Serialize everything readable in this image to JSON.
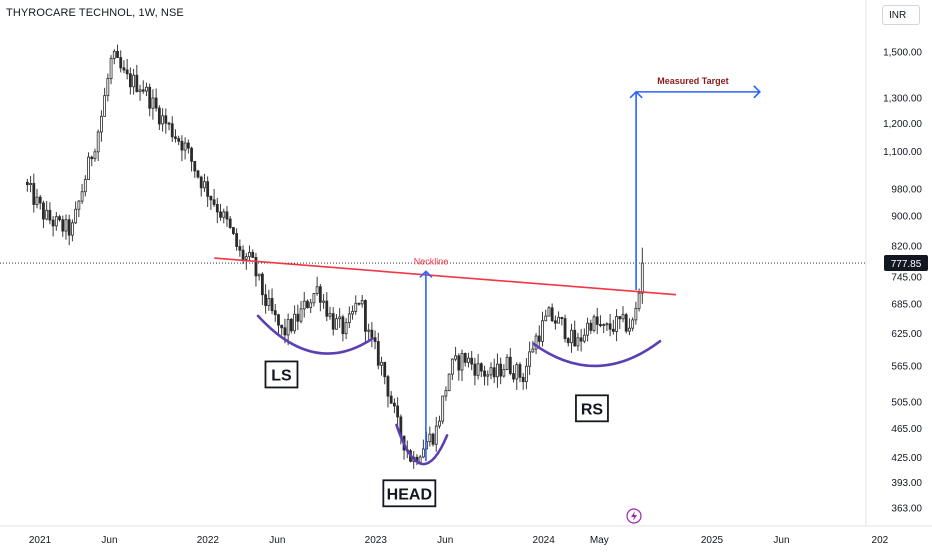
{
  "header": {
    "title": "THYROCARE TECHNOL, 1W, NSE",
    "currency": "INR"
  },
  "colors": {
    "up": "#089981",
    "down": "#f23645",
    "body_up": "#2b2b2b",
    "body_down": "#2b2b2b",
    "neckline": "#f23645",
    "pattern_arc": "#5b3fb3",
    "target_arrow": "#2962ff",
    "target_label": "#8b1a1a",
    "last_price_bg": "#131722"
  },
  "chart_data": {
    "type": "candlestick",
    "y_scale": "log",
    "ylim": [
      345,
      1720
    ],
    "price_ticks": [
      "1,500.00",
      "1,300.00",
      "1,200.00",
      "1,100.00",
      "980.00",
      "900.00",
      "820.00",
      "745.00",
      "685.00",
      "625.00",
      "565.00",
      "505.00",
      "465.00",
      "425.00",
      "393.00",
      "363.00"
    ],
    "price_tick_values": [
      1500,
      1300,
      1200,
      1100,
      980,
      900,
      820,
      745,
      685,
      625,
      565,
      505,
      465,
      425,
      393,
      363
    ],
    "time_ticks": [
      "2021",
      "Jun",
      "2022",
      "Jun",
      "2023",
      "Jun",
      "2024",
      "May",
      "2025",
      "Jun",
      "202"
    ],
    "time_tick_dates": [
      "2021-01-01",
      "2021-06-01",
      "2022-01-01",
      "2022-06-01",
      "2023-01-01",
      "2023-06-01",
      "2024-01-01",
      "2024-05-01",
      "2025-01-01",
      "2025-06-01",
      "2026-01-01"
    ],
    "last_price": "777.85",
    "last_price_value": 777.85,
    "anchors": [
      [
        "2020-12-01",
        1000
      ],
      [
        "2021-01-15",
        900
      ],
      [
        "2021-02-20",
        870
      ],
      [
        "2021-03-15",
        860
      ],
      [
        "2021-04-10",
        1000
      ],
      [
        "2021-05-15",
        1200
      ],
      [
        "2021-06-10",
        1480
      ],
      [
        "2021-07-10",
        1380
      ],
      [
        "2021-08-15",
        1350
      ],
      [
        "2021-09-15",
        1250
      ],
      [
        "2021-10-15",
        1180
      ],
      [
        "2021-11-15",
        1120
      ],
      [
        "2021-12-15",
        1020
      ],
      [
        "2022-01-10",
        960
      ],
      [
        "2022-02-15",
        880
      ],
      [
        "2022-03-15",
        800
      ],
      [
        "2022-04-10",
        780
      ],
      [
        "2022-05-10",
        690
      ],
      [
        "2022-06-15",
        625
      ],
      [
        "2022-07-15",
        650
      ],
      [
        "2022-08-10",
        690
      ],
      [
        "2022-09-01",
        720
      ],
      [
        "2022-10-01",
        650
      ],
      [
        "2022-11-01",
        630
      ],
      [
        "2022-12-01",
        700
      ],
      [
        "2022-12-20",
        620
      ],
      [
        "2023-01-20",
        560
      ],
      [
        "2023-02-20",
        470
      ],
      [
        "2023-03-25",
        420
      ],
      [
        "2023-04-15",
        440
      ],
      [
        "2023-05-15",
        460
      ],
      [
        "2023-06-15",
        560
      ],
      [
        "2023-07-15",
        580
      ],
      [
        "2023-08-15",
        560
      ],
      [
        "2023-09-15",
        545
      ],
      [
        "2023-10-15",
        570
      ],
      [
        "2023-11-20",
        545
      ],
      [
        "2023-12-15",
        610
      ],
      [
        "2024-01-15",
        660
      ],
      [
        "2024-02-15",
        640
      ],
      [
        "2024-03-15",
        600
      ],
      [
        "2024-04-15",
        650
      ],
      [
        "2024-05-15",
        630
      ],
      [
        "2024-06-15",
        645
      ],
      [
        "2024-07-15",
        640
      ],
      [
        "2024-07-28",
        690
      ],
      [
        "2024-08-05",
        777.85
      ]
    ],
    "patterns": [
      {
        "label": "LS",
        "box_date": "2022-06-10",
        "box_price": 550
      },
      {
        "label": "HEAD",
        "box_date": "2023-03-15",
        "box_price": 380
      },
      {
        "label": "RS",
        "box_date": "2024-04-15",
        "box_price": 495
      }
    ],
    "neckline_label": "Neckline",
    "neckline": [
      [
        "2022-01-15",
        790
      ],
      [
        "2024-10-15",
        705
      ]
    ],
    "head_arrow": {
      "date": "2023-04-20",
      "from": 420,
      "to": 758
    },
    "target_arrow": {
      "date": "2024-07-20",
      "from": 715,
      "to": 1325,
      "end_date": "2025-04-15"
    },
    "target_label": "Measured Target"
  }
}
